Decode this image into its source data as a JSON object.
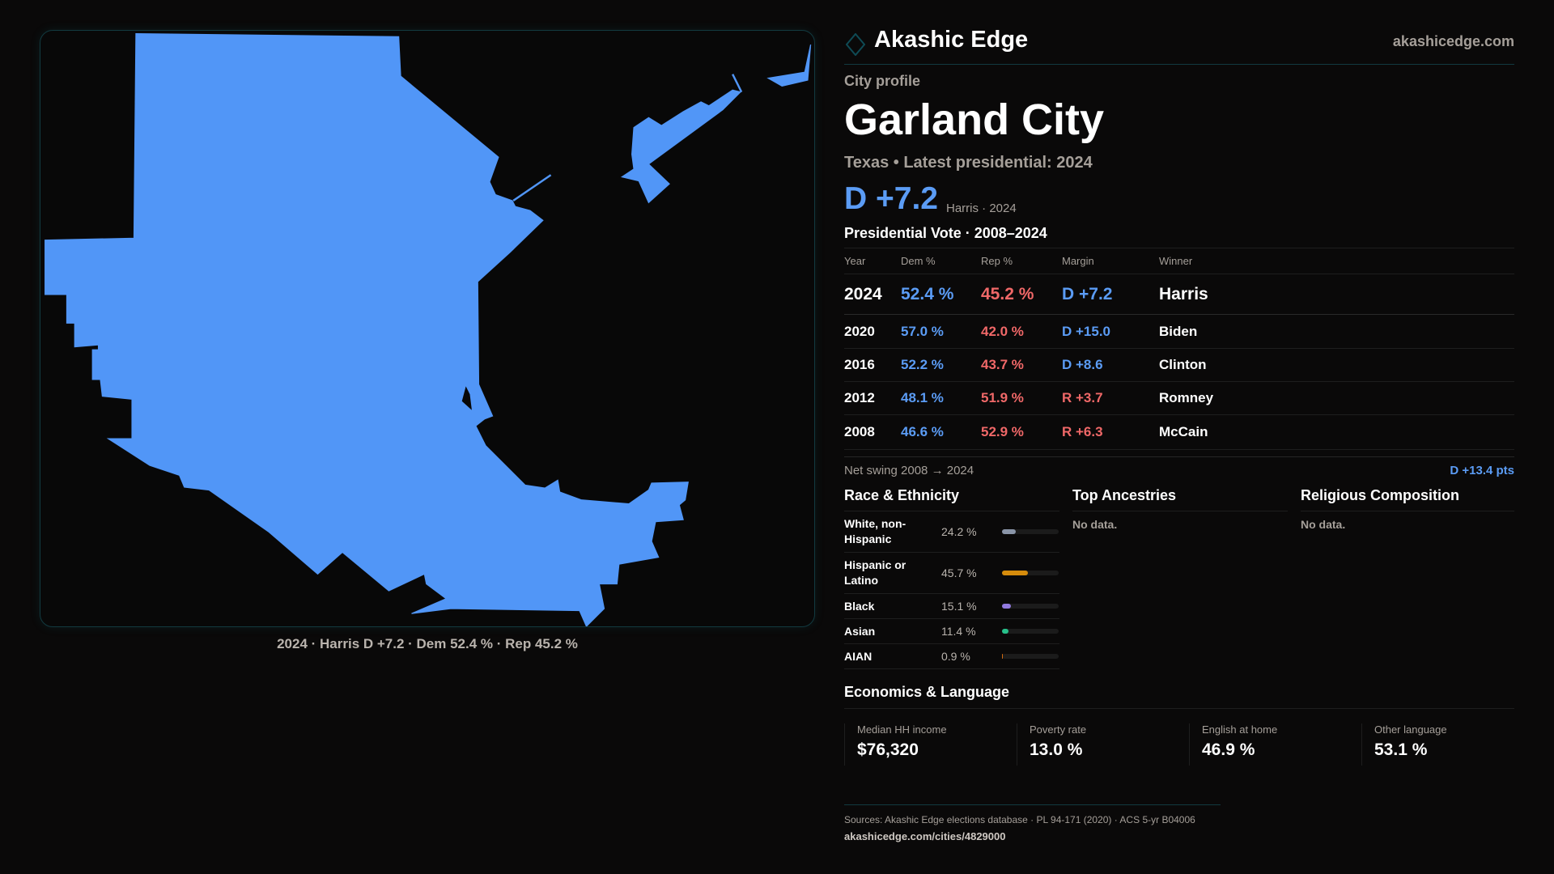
{
  "brand": {
    "name": "Akashic Edge",
    "site": "akashicedge.com"
  },
  "map": {
    "caption": "2024 · Harris D +7.2 · Dem 52.4 % · Rep 45.2 %",
    "fill_color": "#5196f7"
  },
  "profile": {
    "kicker": "City profile",
    "title": "Garland City",
    "subtitle": "Texas • Latest presidential: 2024",
    "headline_margin": "D +7.2",
    "headline_note": "Harris · 2024"
  },
  "presidential": {
    "title": "Presidential Vote · 2008–2024",
    "headers": [
      "Year",
      "Dem %",
      "Rep %",
      "Margin",
      "Winner"
    ],
    "rows": [
      {
        "year": "2024",
        "dem": "52.4 %",
        "rep": "45.2 %",
        "margin": "D +7.2",
        "winner": "Harris",
        "party": "D"
      },
      {
        "year": "2020",
        "dem": "57.0 %",
        "rep": "42.0 %",
        "margin": "D +15.0",
        "winner": "Biden",
        "party": "D"
      },
      {
        "year": "2016",
        "dem": "52.2 %",
        "rep": "43.7 %",
        "margin": "D +8.6",
        "winner": "Clinton",
        "party": "D"
      },
      {
        "year": "2012",
        "dem": "48.1 %",
        "rep": "51.9 %",
        "margin": "R +3.7",
        "winner": "Romney",
        "party": "R"
      },
      {
        "year": "2008",
        "dem": "46.6 %",
        "rep": "52.9 %",
        "margin": "R +6.3",
        "winner": "McCain",
        "party": "R"
      }
    ],
    "swing_label": "Net swing 2008 → 2024",
    "swing_value": "D +13.4 pts"
  },
  "race": {
    "title": "Race & Ethnicity",
    "items": [
      {
        "label": "White, non-Hispanic",
        "value": "24.2 %",
        "pct": 24.2,
        "color": "#8a95a8"
      },
      {
        "label": "Hispanic or Latino",
        "value": "45.7 %",
        "pct": 45.7,
        "color": "#d68c0c"
      },
      {
        "label": "Black",
        "value": "15.1 %",
        "pct": 15.1,
        "color": "#9179df"
      },
      {
        "label": "Asian",
        "value": "11.4 %",
        "pct": 11.4,
        "color": "#27c08a"
      },
      {
        "label": "AIAN",
        "value": "0.9 %",
        "pct": 0.9,
        "color": "#d06a10"
      }
    ]
  },
  "ancestries": {
    "title": "Top Ancestries",
    "empty": "No data."
  },
  "religion": {
    "title": "Religious Composition",
    "empty": "No data."
  },
  "economics": {
    "title": "Economics & Language",
    "stats": [
      {
        "label": "Median HH income",
        "value": "$76,320"
      },
      {
        "label": "Poverty rate",
        "value": "13.0 %"
      },
      {
        "label": "English at home",
        "value": "46.9 %"
      },
      {
        "label": "Other language",
        "value": "53.1 %"
      }
    ]
  },
  "footer": {
    "sources": "Sources: Akashic Edge elections database · PL 94-171 (2020) · ACS 5-yr B04006",
    "url": "akashicedge.com/cities/4829000"
  }
}
